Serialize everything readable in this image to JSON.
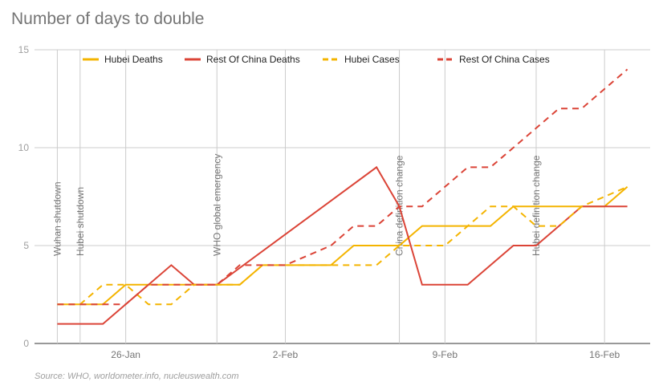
{
  "chart_data": {
    "type": "line",
    "title": "Number of days to double",
    "source": "Source: WHO, worldometer.info, nucleuswealth.com",
    "xlabel": "",
    "ylabel": "",
    "x_tick_labels": [
      {
        "x": "2020-01-26",
        "label": "26-Jan"
      },
      {
        "x": "2020-02-02",
        "label": "2-Feb"
      },
      {
        "x": "2020-02-09",
        "label": "9-Feb"
      },
      {
        "x": "2020-02-16",
        "label": "16-Feb"
      }
    ],
    "xlim": [
      "2020-01-22",
      "2020-02-18"
    ],
    "ylim": [
      0,
      15
    ],
    "y_ticks": [
      0,
      5,
      10,
      15
    ],
    "grid": true,
    "legend_position": "top",
    "events": [
      {
        "x": "2020-01-23",
        "label": "Wuhan shutdown"
      },
      {
        "x": "2020-01-24",
        "label": "Hubei shutdown"
      },
      {
        "x": "2020-01-30",
        "label": "WHO global emergency"
      },
      {
        "x": "2020-02-07",
        "label": "China definition change"
      },
      {
        "x": "2020-02-13",
        "label": "Hubei definition change"
      }
    ],
    "series": [
      {
        "name": "Hubei Deaths",
        "color": "#f4b400",
        "dashed": false,
        "points": [
          [
            "2020-01-23",
            2
          ],
          [
            "2020-01-25",
            2
          ],
          [
            "2020-01-26",
            3
          ],
          [
            "2020-01-27",
            3
          ],
          [
            "2020-01-31",
            3
          ],
          [
            "2020-02-01",
            4
          ],
          [
            "2020-02-04",
            4
          ],
          [
            "2020-02-05",
            5
          ],
          [
            "2020-02-07",
            5
          ],
          [
            "2020-02-08",
            6
          ],
          [
            "2020-02-11",
            6
          ],
          [
            "2020-02-12",
            7
          ],
          [
            "2020-02-16",
            7
          ],
          [
            "2020-02-17",
            8
          ]
        ]
      },
      {
        "name": "Rest Of China Deaths",
        "color": "#db4437",
        "dashed": false,
        "points": [
          [
            "2020-01-23",
            1
          ],
          [
            "2020-01-25",
            1
          ],
          [
            "2020-01-28",
            4
          ],
          [
            "2020-01-29",
            3
          ],
          [
            "2020-01-30",
            3
          ],
          [
            "2020-02-06",
            9
          ],
          [
            "2020-02-07",
            7
          ],
          [
            "2020-02-08",
            3
          ],
          [
            "2020-02-10",
            3
          ],
          [
            "2020-02-12",
            5
          ],
          [
            "2020-02-13",
            5
          ],
          [
            "2020-02-15",
            7
          ],
          [
            "2020-02-17",
            7
          ]
        ]
      },
      {
        "name": "Hubei Cases",
        "color": "#f4b400",
        "dashed": true,
        "points": [
          [
            "2020-01-23",
            2
          ],
          [
            "2020-01-24",
            2
          ],
          [
            "2020-01-25",
            3
          ],
          [
            "2020-01-26",
            3
          ],
          [
            "2020-01-27",
            2
          ],
          [
            "2020-01-28",
            2
          ],
          [
            "2020-01-29",
            3
          ],
          [
            "2020-01-31",
            3
          ],
          [
            "2020-02-01",
            4
          ],
          [
            "2020-02-03",
            4
          ],
          [
            "2020-02-04",
            4
          ],
          [
            "2020-02-06",
            4
          ],
          [
            "2020-02-07",
            5
          ],
          [
            "2020-02-09",
            5
          ],
          [
            "2020-02-11",
            7
          ],
          [
            "2020-02-12",
            7
          ],
          [
            "2020-02-13",
            6
          ],
          [
            "2020-02-14",
            6
          ],
          [
            "2020-02-15",
            7
          ],
          [
            "2020-02-17",
            8
          ]
        ]
      },
      {
        "name": "Rest Of China Cases",
        "color": "#db4437",
        "dashed": true,
        "points": [
          [
            "2020-01-23",
            2
          ],
          [
            "2020-01-26",
            2
          ],
          [
            "2020-01-27",
            3
          ],
          [
            "2020-01-30",
            3
          ],
          [
            "2020-01-31",
            4
          ],
          [
            "2020-02-02",
            4
          ],
          [
            "2020-02-04",
            5
          ],
          [
            "2020-02-05",
            6
          ],
          [
            "2020-02-06",
            6
          ],
          [
            "2020-02-07",
            7
          ],
          [
            "2020-02-08",
            7
          ],
          [
            "2020-02-10",
            9
          ],
          [
            "2020-02-11",
            9
          ],
          [
            "2020-02-14",
            12
          ],
          [
            "2020-02-15",
            12
          ],
          [
            "2020-02-17",
            14
          ]
        ]
      }
    ]
  }
}
